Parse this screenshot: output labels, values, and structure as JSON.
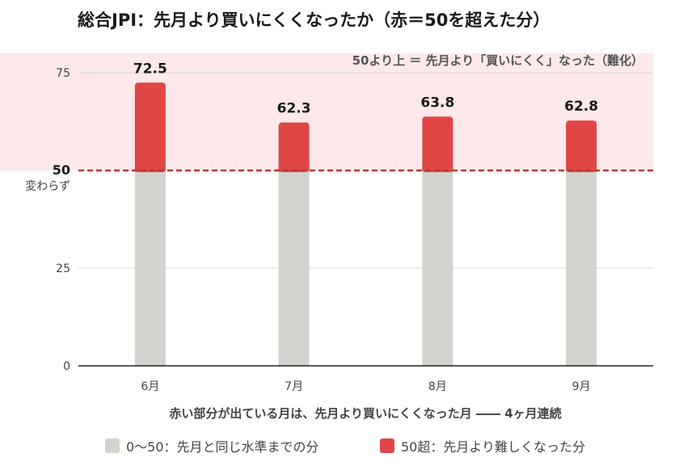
{
  "chart_data": {
    "type": "bar",
    "title": "総合JPI：先月より買いにくくなったか（赤＝50を超えた分）",
    "categories": [
      "6月",
      "7月",
      "8月",
      "9月"
    ],
    "values": [
      72.5,
      62.3,
      63.8,
      62.8
    ],
    "data_labels": [
      "72.5",
      "62.3",
      "63.8",
      "62.8"
    ],
    "baseline": 50,
    "ylim": [
      0,
      80
    ],
    "y_ticks": [
      0,
      25,
      50,
      75
    ],
    "y_tick_labels": [
      "0",
      "25",
      "50",
      "75"
    ],
    "baseline_label": "変わらず",
    "band_annotation": "50より上 ＝ 先月より「買いにくく」なった（難化）",
    "xlabel": "赤い部分が出ている月は、先月より買いにくくなった月 ―― 4ヶ月連続",
    "grid": "horizontal",
    "series": [
      {
        "name": "0〜50：先月と同じ水準までの分",
        "color": "#d3d2cd"
      },
      {
        "name": "50超：先月より難しくなった分",
        "color": "#e04646"
      }
    ],
    "colors": {
      "band": "#fde9e9",
      "baseline_line": "#b83a3a",
      "axis": "#222222",
      "grid": "#d6d6d6"
    }
  }
}
